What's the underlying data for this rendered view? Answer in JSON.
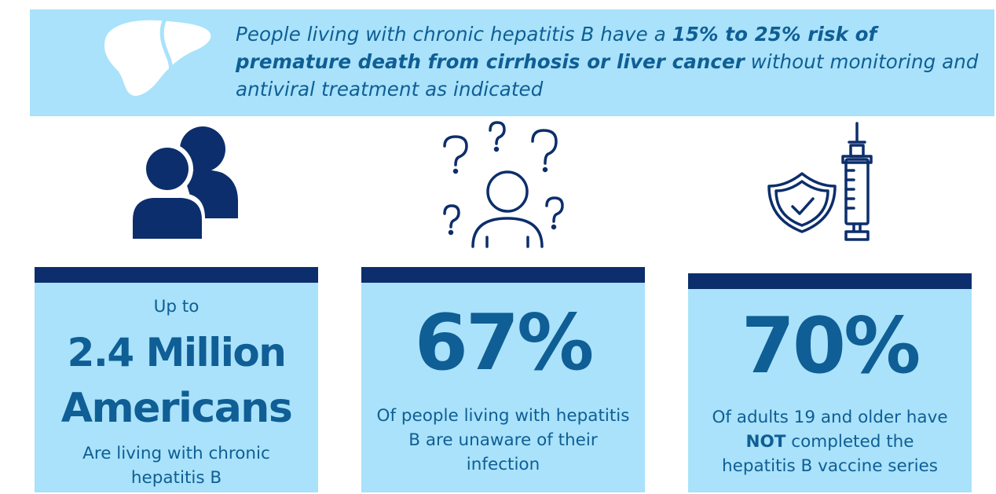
{
  "banner": {
    "text_pre": "People living with chronic hepatitis B have a ",
    "text_bold": "15% to 25% risk of premature death from cirrhosis or liver cancer",
    "text_post": " without monitoring and antiviral treatment as indicated"
  },
  "icons": {
    "banner": "liver-icon",
    "card1": "people-icon",
    "card2": "confused-person-icon",
    "card3": "shield-syringe-icon"
  },
  "colors": {
    "light_blue": "#a9e2fa",
    "navy": "#0c2e6c",
    "text_blue": "#0f5e95"
  },
  "cards": [
    {
      "pre": "Up to",
      "stat_line1": "2.4 Million",
      "stat_line2": "Americans",
      "caption": "Are living with chronic hepatitis B"
    },
    {
      "stat": "67%",
      "caption": "Of people living with hepatitis B are unaware of their infection"
    },
    {
      "stat": "70%",
      "caption_pre": "Of adults 19 and older have ",
      "caption_bold": "NOT",
      "caption_post": " completed the hepatitis B vaccine series"
    }
  ]
}
